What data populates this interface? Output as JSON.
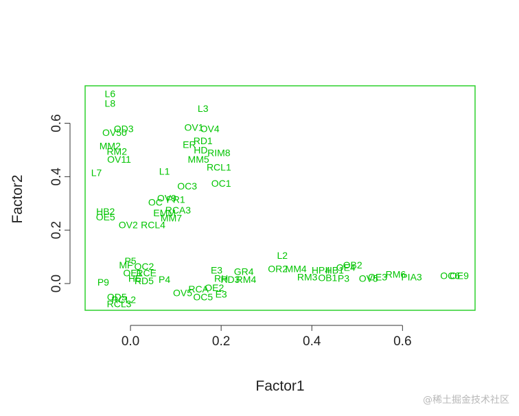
{
  "watermark": "@稀土掘金技术社区",
  "chart_data": {
    "type": "scatter",
    "title": "",
    "xlabel": "Factor1",
    "ylabel": "Factor2",
    "xlim": [
      -0.1,
      0.76
    ],
    "ylim": [
      -0.1,
      0.74
    ],
    "xticks": [
      0.0,
      0.2,
      0.4,
      0.6
    ],
    "yticks": [
      0.0,
      0.2,
      0.4,
      0.6
    ],
    "xtick_labels": [
      "0.0",
      "0.2",
      "0.4",
      "0.6"
    ],
    "ytick_labels": [
      "0.0",
      "0.2",
      "0.4",
      "0.6"
    ],
    "grid": false,
    "color": "#00c400",
    "points": [
      {
        "label": "L6",
        "x": -0.045,
        "y": 0.71
      },
      {
        "label": "L8",
        "x": -0.045,
        "y": 0.675
      },
      {
        "label": "L3",
        "x": 0.16,
        "y": 0.655
      },
      {
        "label": "OD3",
        "x": -0.015,
        "y": 0.58
      },
      {
        "label": "OV1",
        "x": 0.14,
        "y": 0.585
      },
      {
        "label": "OV4",
        "x": 0.175,
        "y": 0.58
      },
      {
        "label": "OV50",
        "x": -0.035,
        "y": 0.565
      },
      {
        "label": "RD1",
        "x": 0.16,
        "y": 0.535
      },
      {
        "label": "ER",
        "x": 0.13,
        "y": 0.52
      },
      {
        "label": "MM2",
        "x": -0.045,
        "y": 0.515
      },
      {
        "label": "RM2",
        "x": -0.03,
        "y": 0.495
      },
      {
        "label": "HD",
        "x": 0.155,
        "y": 0.5
      },
      {
        "label": "RIM8",
        "x": 0.195,
        "y": 0.49
      },
      {
        "label": "OV11",
        "x": -0.025,
        "y": 0.465
      },
      {
        "label": "MM5",
        "x": 0.15,
        "y": 0.465
      },
      {
        "label": "RCL1",
        "x": 0.195,
        "y": 0.435
      },
      {
        "label": "L7",
        "x": -0.075,
        "y": 0.415
      },
      {
        "label": "L1",
        "x": 0.075,
        "y": 0.42
      },
      {
        "label": "OC1",
        "x": 0.2,
        "y": 0.375
      },
      {
        "label": "OC3",
        "x": 0.125,
        "y": 0.365
      },
      {
        "label": "OV9",
        "x": 0.08,
        "y": 0.32
      },
      {
        "label": "PR1",
        "x": 0.1,
        "y": 0.315
      },
      {
        "label": "OC",
        "x": 0.055,
        "y": 0.305
      },
      {
        "label": "RCA3",
        "x": 0.105,
        "y": 0.275
      },
      {
        "label": "EMM",
        "x": 0.075,
        "y": 0.265
      },
      {
        "label": "MM7",
        "x": 0.09,
        "y": 0.245
      },
      {
        "label": "HB2",
        "x": -0.055,
        "y": 0.27
      },
      {
        "label": "OE5",
        "x": -0.055,
        "y": 0.25
      },
      {
        "label": "OV2",
        "x": -0.005,
        "y": 0.22
      },
      {
        "label": "RCL4",
        "x": 0.05,
        "y": 0.22
      },
      {
        "label": "L2",
        "x": 0.335,
        "y": 0.105
      },
      {
        "label": "P5",
        "x": 0.0,
        "y": 0.085
      },
      {
        "label": "MF",
        "x": -0.01,
        "y": 0.07
      },
      {
        "label": "OC2",
        "x": 0.03,
        "y": 0.065
      },
      {
        "label": "OR2",
        "x": 0.325,
        "y": 0.055
      },
      {
        "label": "MM4",
        "x": 0.365,
        "y": 0.055
      },
      {
        "label": "OB2",
        "x": 0.49,
        "y": 0.07
      },
      {
        "label": "OE4",
        "x": 0.475,
        "y": 0.06
      },
      {
        "label": "E3",
        "x": 0.19,
        "y": 0.05
      },
      {
        "label": "GR4",
        "x": 0.25,
        "y": 0.045
      },
      {
        "label": "HP4",
        "x": 0.42,
        "y": 0.05
      },
      {
        "label": "HB1",
        "x": 0.45,
        "y": 0.05
      },
      {
        "label": "OE1",
        "x": 0.005,
        "y": 0.04
      },
      {
        "label": "RCE",
        "x": 0.035,
        "y": 0.04
      },
      {
        "label": "RH",
        "x": 0.2,
        "y": 0.02
      },
      {
        "label": "RD3",
        "x": 0.22,
        "y": 0.015
      },
      {
        "label": "RM4",
        "x": 0.255,
        "y": 0.015
      },
      {
        "label": "RM3",
        "x": 0.39,
        "y": 0.025
      },
      {
        "label": "OB1",
        "x": 0.435,
        "y": 0.022
      },
      {
        "label": "P3",
        "x": 0.47,
        "y": 0.02
      },
      {
        "label": "OV5",
        "x": 0.525,
        "y": 0.02
      },
      {
        "label": "OE3",
        "x": 0.545,
        "y": 0.025
      },
      {
        "label": "RM6",
        "x": 0.585,
        "y": 0.035
      },
      {
        "label": "PIA3",
        "x": 0.62,
        "y": 0.025
      },
      {
        "label": "OC6",
        "x": 0.705,
        "y": 0.03
      },
      {
        "label": "OE9",
        "x": 0.725,
        "y": 0.03
      },
      {
        "label": "P4",
        "x": 0.075,
        "y": 0.015
      },
      {
        "label": "HE",
        "x": 0.01,
        "y": 0.02
      },
      {
        "label": "RD5",
        "x": 0.03,
        "y": 0.01
      },
      {
        "label": "P9",
        "x": -0.06,
        "y": 0.005
      },
      {
        "label": "RCA",
        "x": 0.15,
        "y": -0.02
      },
      {
        "label": "OE2",
        "x": 0.185,
        "y": -0.015
      },
      {
        "label": "OV5",
        "x": 0.115,
        "y": -0.035
      },
      {
        "label": "OC5",
        "x": 0.16,
        "y": -0.05
      },
      {
        "label": "E3",
        "x": 0.2,
        "y": -0.04
      },
      {
        "label": "OD5",
        "x": -0.03,
        "y": -0.05
      },
      {
        "label": "RCL2",
        "x": -0.015,
        "y": -0.06
      },
      {
        "label": "RCL3",
        "x": -0.025,
        "y": -0.075
      }
    ]
  }
}
